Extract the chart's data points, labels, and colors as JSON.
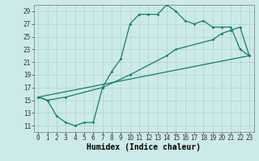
{
  "xlabel": "Humidex (Indice chaleur)",
  "ylabel": "",
  "bg_color": "#cceae8",
  "line_color": "#1a7a6a",
  "grid_color": "#aad4d0",
  "xlim": [
    -0.5,
    23.5
  ],
  "ylim": [
    10,
    30
  ],
  "yticks": [
    11,
    13,
    15,
    17,
    19,
    21,
    23,
    25,
    27,
    29
  ],
  "xticks": [
    0,
    1,
    2,
    3,
    4,
    5,
    6,
    7,
    8,
    9,
    10,
    11,
    12,
    13,
    14,
    15,
    16,
    17,
    18,
    19,
    20,
    21,
    22,
    23
  ],
  "series1_x": [
    0,
    1,
    2,
    3,
    4,
    5,
    6,
    7,
    8,
    9,
    10,
    11,
    12,
    13,
    14,
    15,
    16,
    17,
    18,
    19,
    20,
    21,
    22,
    23
  ],
  "series1_y": [
    15.5,
    15.0,
    12.5,
    11.5,
    11.0,
    11.5,
    11.5,
    17.0,
    19.5,
    21.5,
    27.0,
    28.5,
    28.5,
    28.5,
    30.0,
    29.0,
    27.5,
    27.0,
    27.5,
    26.5,
    26.5,
    26.5,
    23.0,
    22.0
  ],
  "series2_x": [
    0,
    1,
    3,
    7,
    10,
    14,
    15,
    19,
    20,
    21,
    22,
    23
  ],
  "series2_y": [
    15.5,
    15.0,
    15.5,
    17.0,
    19.0,
    22.0,
    23.0,
    24.5,
    25.5,
    26.0,
    26.5,
    22.0
  ],
  "series3_x": [
    0,
    23
  ],
  "series3_y": [
    15.5,
    22.0
  ]
}
